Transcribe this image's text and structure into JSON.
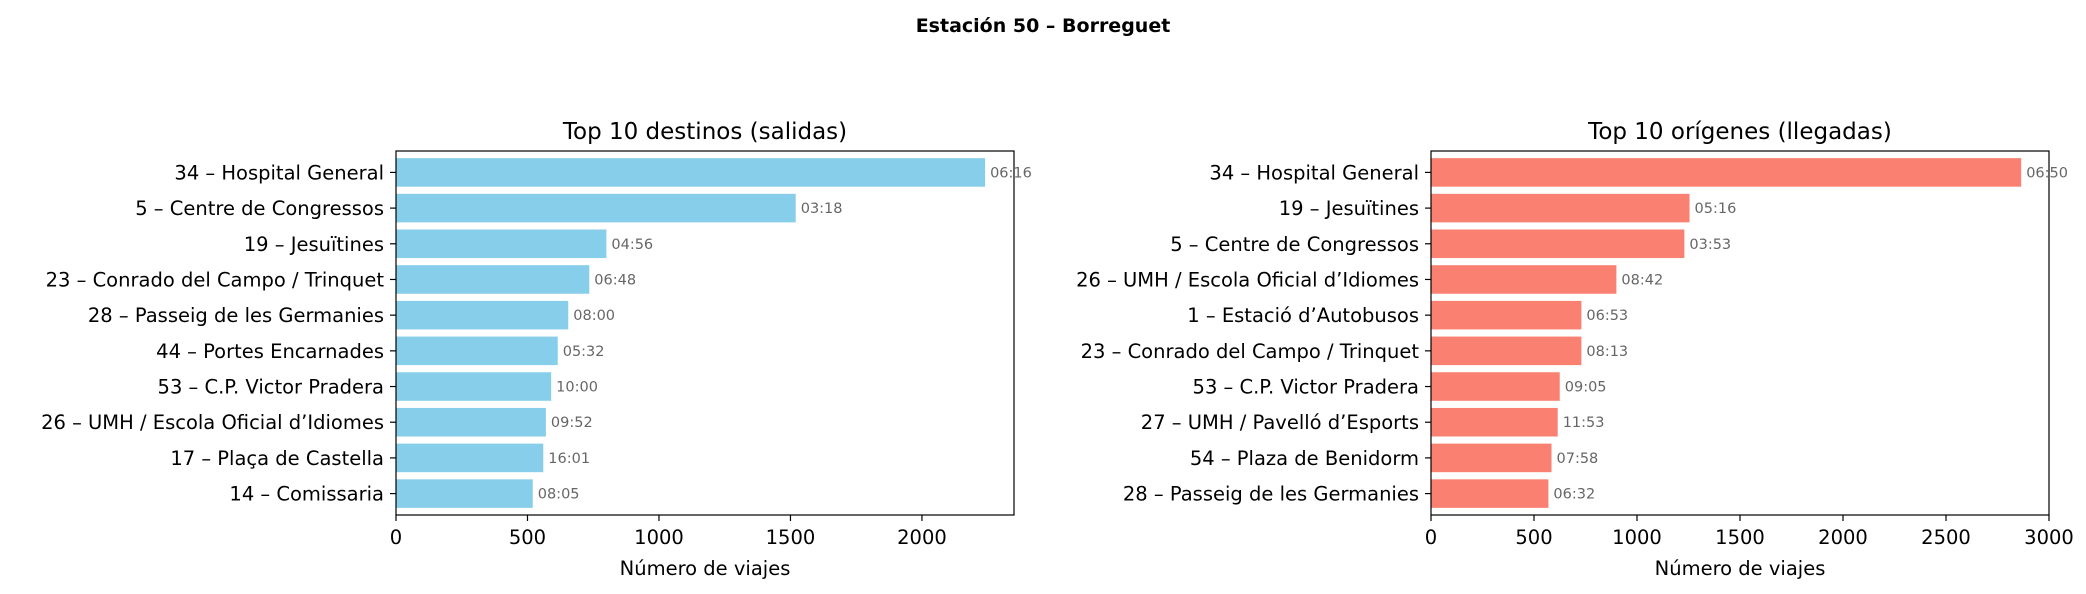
{
  "figure": {
    "suptitle": "Estación 50 – Borreguet"
  },
  "chart_data": [
    {
      "type": "bar",
      "orientation": "horizontal",
      "title": "Top 10 destinos (salidas)",
      "xlabel": "Número de viajes",
      "ylabel": "",
      "xlim": [
        0,
        2350
      ],
      "xticks": [
        0,
        500,
        1000,
        1500,
        2000
      ],
      "color": "#87ceeb",
      "categories": [
        "34 – Hospital General",
        "5 – Centre de Congressos",
        "19 – Jesuïtines",
        "23 – Conrado del Campo / Trinquet",
        "28 – Passeig de les Germanies",
        "44 – Portes Encarnades",
        "53 – C.P. Victor Pradera",
        "26 – UMH / Escola Oficial d’Idiomes",
        "17 – Plaça de Castella",
        "14 – Comissaria"
      ],
      "values": [
        2240,
        1520,
        800,
        735,
        655,
        615,
        590,
        570,
        560,
        520
      ],
      "annotations": [
        "06:16",
        "03:18",
        "04:56",
        "06:48",
        "08:00",
        "05:32",
        "10:00",
        "09:52",
        "16:01",
        "08:05"
      ]
    },
    {
      "type": "bar",
      "orientation": "horizontal",
      "title": "Top 10 orígenes (llegadas)",
      "xlabel": "Número de viajes",
      "ylabel": "",
      "xlim": [
        0,
        3000
      ],
      "xticks": [
        0,
        500,
        1000,
        1500,
        2000,
        2500,
        3000
      ],
      "color": "#fa8072",
      "categories": [
        "34 – Hospital General",
        "19 – Jesuïtines",
        "5 – Centre de Congressos",
        "26 – UMH / Escola Oficial d’Idiomes",
        "1 – Estació d’Autobusos",
        "23 – Conrado del Campo / Trinquet",
        "53 – C.P. Victor Pradera",
        "27 – UMH / Pavelló d’Esports",
        "54 – Plaza de Benidorm",
        "28 – Passeig de les Germanies"
      ],
      "values": [
        2865,
        1255,
        1230,
        900,
        730,
        730,
        625,
        615,
        585,
        570
      ],
      "annotations": [
        "06:50",
        "05:16",
        "03:53",
        "08:42",
        "06:53",
        "08:13",
        "09:05",
        "11:53",
        "07:58",
        "06:32"
      ]
    }
  ]
}
